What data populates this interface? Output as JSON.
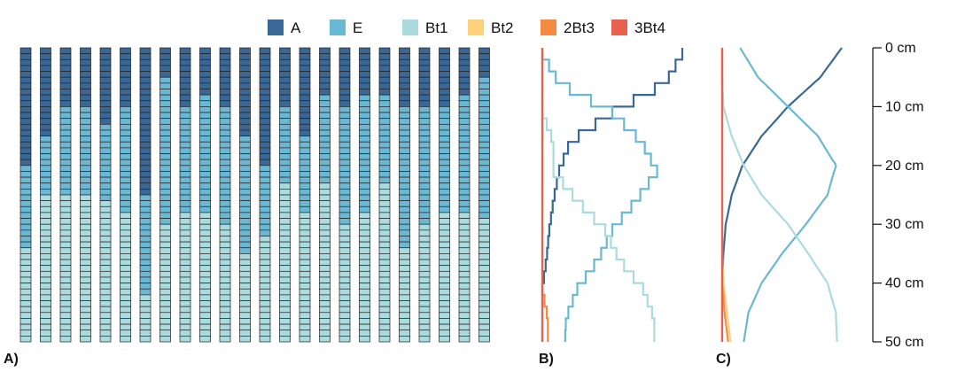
{
  "legend": {
    "items": [
      {
        "label": "A",
        "color": "#3a6896"
      },
      {
        "label": "E",
        "color": "#6bb8d4"
      },
      {
        "label": "Bt1",
        "color": "#aadcdf"
      },
      {
        "label": "Bt2",
        "color": "#fdd17a"
      },
      {
        "label": "2Bt3",
        "color": "#f58a42"
      },
      {
        "label": "3Bt4",
        "color": "#e8604e"
      }
    ]
  },
  "panels": {
    "a_label": "A)",
    "b_label": "B)",
    "c_label": "C)"
  },
  "chart_data": [
    {
      "type": "bar",
      "panel": "A)",
      "description_of_profiles": "24 simulated profiles, 1 cm slices, 0-50 cm",
      "profile_bottom_cm": 50,
      "profiles": [
        {
          "A": 20,
          "E": 14,
          "Bt1": 16
        },
        {
          "A": 15,
          "E": 10,
          "Bt1": 25
        },
        {
          "A": 10,
          "E": 15,
          "Bt1": 25
        },
        {
          "A": 10,
          "E": 15,
          "Bt1": 25
        },
        {
          "A": 13,
          "E": 13,
          "Bt1": 24
        },
        {
          "A": 10,
          "E": 18,
          "Bt1": 22
        },
        {
          "A": 25,
          "E": 17,
          "Bt1": 8
        },
        {
          "A": 5,
          "E": 25,
          "Bt1": 20
        },
        {
          "A": 10,
          "E": 18,
          "Bt1": 22
        },
        {
          "A": 8,
          "E": 20,
          "Bt1": 22
        },
        {
          "A": 10,
          "E": 20,
          "Bt1": 20
        },
        {
          "A": 15,
          "E": 20,
          "Bt1": 15
        },
        {
          "A": 20,
          "E": 12,
          "Bt1": 18
        },
        {
          "A": 10,
          "E": 13,
          "Bt1": 27
        },
        {
          "A": 15,
          "E": 13,
          "Bt1": 22
        },
        {
          "A": 8,
          "E": 15,
          "Bt1": 27
        },
        {
          "A": 10,
          "E": 20,
          "Bt1": 20
        },
        {
          "A": 8,
          "E": 20,
          "Bt1": 22
        },
        {
          "A": 8,
          "E": 15,
          "Bt1": 27
        },
        {
          "A": 10,
          "E": 24,
          "Bt1": 16
        },
        {
          "A": 10,
          "E": 20,
          "Bt1": 20
        },
        {
          "A": 10,
          "E": 18,
          "Bt1": 22
        },
        {
          "A": 8,
          "E": 20,
          "Bt1": 22
        },
        {
          "A": 5,
          "E": 24,
          "Bt1": 21
        }
      ]
    },
    {
      "type": "line",
      "panel": "B)",
      "x_meaning": "proportion",
      "xlim": [
        0,
        1
      ],
      "ylim": [
        0,
        50
      ],
      "y_reversed": true,
      "series": [
        {
          "name": "A",
          "depth": [
            0,
            5,
            10,
            15,
            20,
            25,
            30,
            35,
            40,
            45,
            50
          ],
          "values": [
            1.0,
            0.88,
            0.5,
            0.2,
            0.12,
            0.08,
            0.05,
            0.03,
            0.0,
            0.0,
            0.0
          ]
        },
        {
          "name": "E",
          "depth": [
            0,
            5,
            10,
            15,
            20,
            25,
            30,
            35,
            40,
            45,
            50
          ],
          "values": [
            0.0,
            0.12,
            0.5,
            0.71,
            0.82,
            0.67,
            0.5,
            0.4,
            0.25,
            0.17,
            0.16
          ]
        },
        {
          "name": "Bt1",
          "depth": [
            0,
            5,
            10,
            15,
            20,
            25,
            30,
            35,
            40,
            45,
            50
          ],
          "values": [
            0.0,
            0.0,
            0.0,
            0.08,
            0.08,
            0.25,
            0.45,
            0.55,
            0.72,
            0.8,
            0.8
          ]
        },
        {
          "name": "2Bt3",
          "depth": [
            0,
            40,
            45,
            50
          ],
          "values": [
            0.0,
            0.0,
            0.04,
            0.04
          ]
        },
        {
          "name": "3Bt4",
          "depth": [
            0,
            50
          ],
          "values": [
            0.0,
            0.0
          ]
        }
      ]
    },
    {
      "type": "line",
      "panel": "C)",
      "x_meaning": "probability",
      "xlim": [
        0,
        1
      ],
      "ylim": [
        0,
        50
      ],
      "y_reversed": true,
      "ticks": [
        "0 cm",
        "10 cm",
        "20 cm",
        "30 cm",
        "40 cm",
        "50 cm"
      ],
      "series": [
        {
          "name": "A",
          "depth": [
            0,
            5,
            10,
            15,
            20,
            25,
            30,
            35,
            40,
            45,
            50
          ],
          "values": [
            1.0,
            0.82,
            0.55,
            0.33,
            0.17,
            0.08,
            0.03,
            0.01,
            0.0,
            0.0,
            0.0
          ]
        },
        {
          "name": "E",
          "depth": [
            0,
            5,
            10,
            15,
            20,
            25,
            30,
            35,
            40,
            45,
            50
          ],
          "values": [
            0.15,
            0.3,
            0.55,
            0.8,
            0.95,
            0.88,
            0.7,
            0.5,
            0.33,
            0.22,
            0.18
          ]
        },
        {
          "name": "Bt1",
          "depth": [
            0,
            5,
            10,
            15,
            20,
            25,
            30,
            35,
            40,
            45,
            50
          ],
          "values": [
            0.0,
            0.0,
            0.01,
            0.08,
            0.18,
            0.33,
            0.55,
            0.72,
            0.88,
            0.95,
            0.96
          ]
        },
        {
          "name": "Bt2",
          "depth": [
            0,
            35,
            40,
            45,
            50
          ],
          "values": [
            0.0,
            0.0,
            0.01,
            0.04,
            0.07
          ]
        },
        {
          "name": "2Bt3",
          "depth": [
            0,
            40,
            45,
            50
          ],
          "values": [
            0.0,
            0.0,
            0.02,
            0.05
          ]
        },
        {
          "name": "3Bt4",
          "depth": [
            0,
            50
          ],
          "values": [
            0.0,
            0.0
          ]
        }
      ]
    }
  ]
}
